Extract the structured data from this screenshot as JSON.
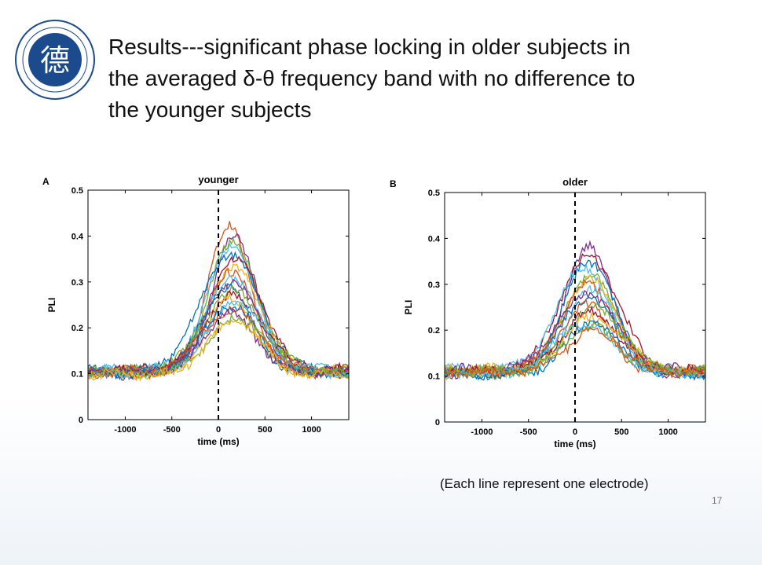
{
  "slide": {
    "title_lines": [
      "Results---significant phase locking in older subjects in",
      "the averaged δ-θ frequency band with no difference to",
      "the younger subjects"
    ],
    "caption": "(Each line represent one electrode)",
    "page_number": "17"
  },
  "logo": {
    "glyph": "德",
    "color": "#1b4b8c"
  },
  "chart_data": [
    {
      "type": "line",
      "panel_letter": "A",
      "title": "younger",
      "xlabel": "time (ms)",
      "ylabel": "PLI",
      "xlim": [
        -1400,
        1400
      ],
      "ylim": [
        0,
        0.5
      ],
      "xticks": [
        -1000,
        -500,
        0,
        500,
        1000
      ],
      "yticks": [
        0,
        0.1,
        0.2,
        0.3,
        0.4,
        0.5
      ],
      "ytick_labels": [
        "0",
        "0.1",
        "0.2",
        "0.3",
        "0.4",
        "0.5"
      ],
      "vline_x": 0,
      "grid": false,
      "legend": "none",
      "curve_model": {
        "baseline": 0.105,
        "peaks": [
          0.42,
          0.4,
          0.39,
          0.38,
          0.36,
          0.35,
          0.33,
          0.32,
          0.31,
          0.3,
          0.29,
          0.28,
          0.27,
          0.265,
          0.26,
          0.25,
          0.24,
          0.23,
          0.22,
          0.215
        ],
        "peak_time_ms": 150
      },
      "colors": [
        "#d95319",
        "#7e2f8e",
        "#77ac30",
        "#4dbeee",
        "#0072bd",
        "#a2142f",
        "#edb120",
        "#d95319",
        "#4dbeee",
        "#7e2f8e",
        "#0072bd",
        "#77ac30",
        "#a2142f",
        "#edb120",
        "#4dbeee",
        "#0072bd",
        "#d95319",
        "#7e2f8e",
        "#77ac30",
        "#edb120"
      ]
    },
    {
      "type": "line",
      "panel_letter": "B",
      "title": "older",
      "xlabel": "time (ms)",
      "ylabel": "PLI",
      "xlim": [
        -1400,
        1400
      ],
      "ylim": [
        0,
        0.5
      ],
      "xticks": [
        -1000,
        -500,
        0,
        500,
        1000
      ],
      "yticks": [
        0,
        0.1,
        0.2,
        0.3,
        0.4,
        0.5
      ],
      "ytick_labels": [
        "0",
        "0.1",
        "0.2",
        "0.3",
        "0.4",
        "0.5"
      ],
      "vline_x": 0,
      "grid": false,
      "legend": "none",
      "curve_model": {
        "baseline": 0.11,
        "peaks": [
          0.38,
          0.36,
          0.35,
          0.34,
          0.32,
          0.31,
          0.3,
          0.29,
          0.28,
          0.27,
          0.26,
          0.25,
          0.24,
          0.23,
          0.22,
          0.215,
          0.21,
          0.2
        ],
        "peak_time_ms": 150
      },
      "colors": [
        "#7e2f8e",
        "#a2142f",
        "#0072bd",
        "#4dbeee",
        "#77ac30",
        "#edb120",
        "#d95319",
        "#4dbeee",
        "#7e2f8e",
        "#0072bd",
        "#d95319",
        "#77ac30",
        "#a2142f",
        "#edb120",
        "#0072bd",
        "#4dbeee",
        "#77ac30",
        "#d95319"
      ]
    }
  ]
}
